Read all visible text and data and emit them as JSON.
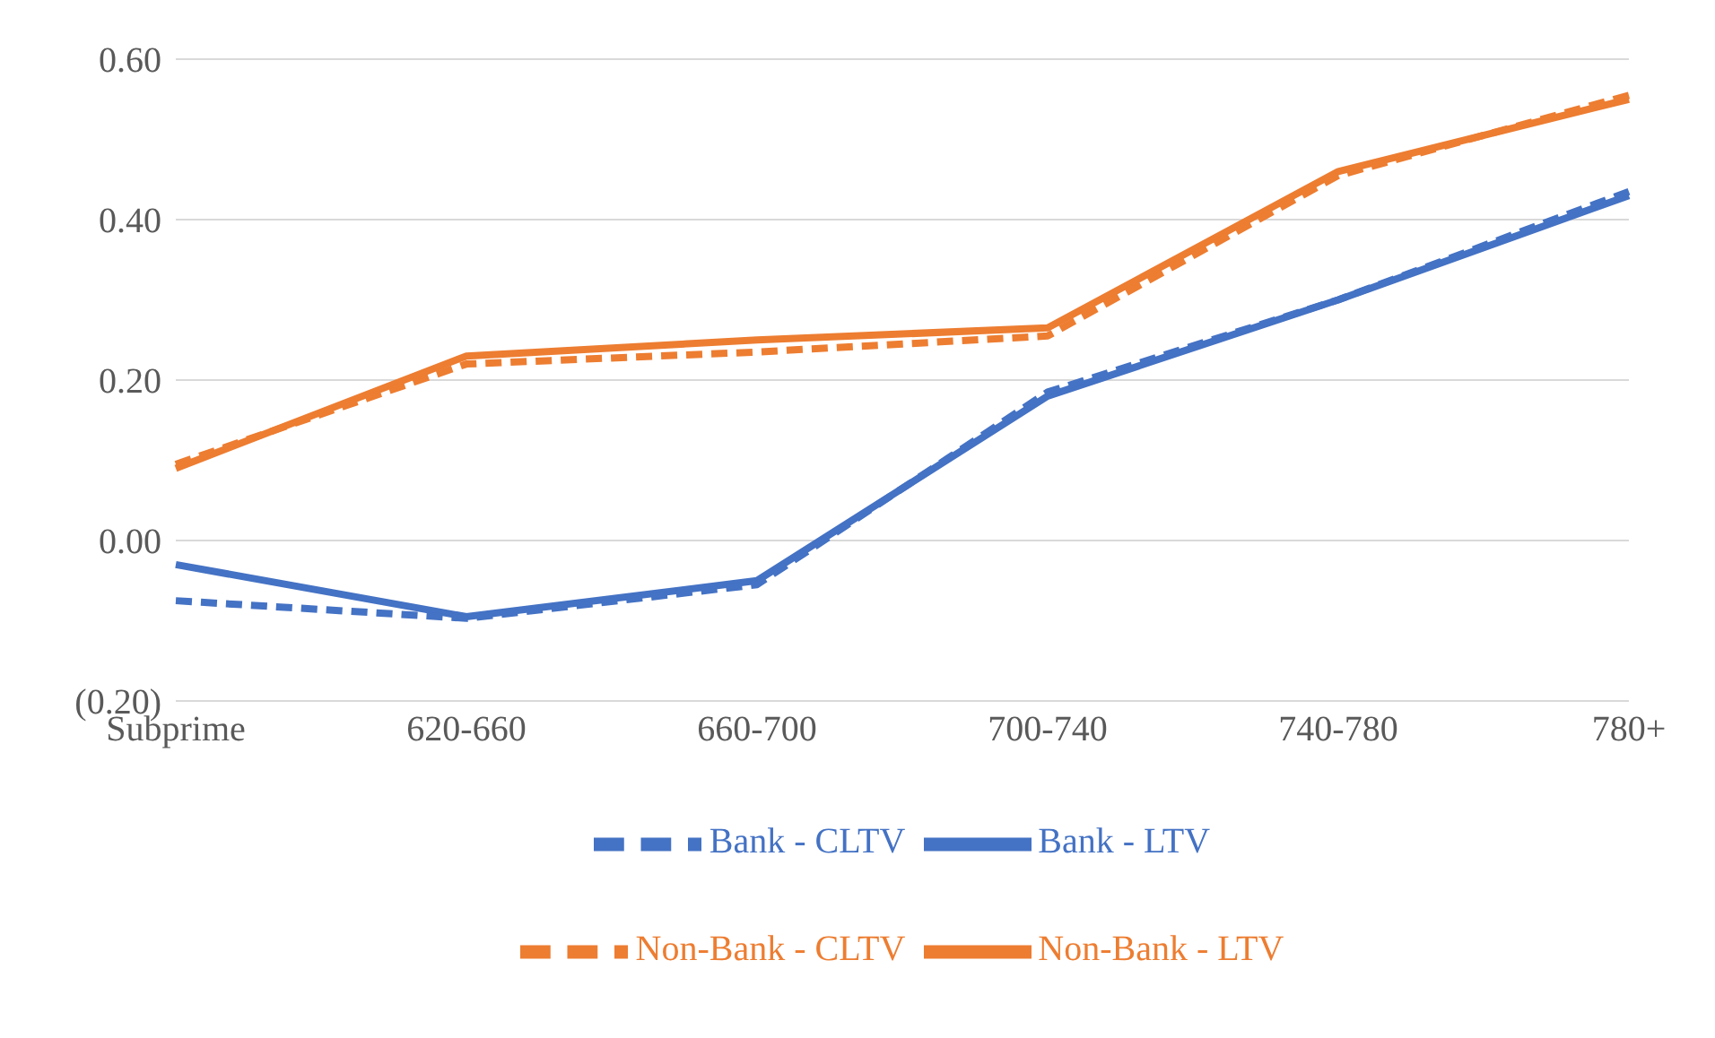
{
  "chart_data": {
    "type": "line",
    "categories": [
      "Subprime",
      "620-660",
      "660-700",
      "700-740",
      "740-780",
      "780+"
    ],
    "series": [
      {
        "name": "Bank - LTV",
        "color": "#4472c4",
        "line_style": "solid",
        "values": [
          -0.03,
          -0.095,
          -0.05,
          0.18,
          0.3,
          0.43
        ]
      },
      {
        "name": "Non-Bank - LTV",
        "color": "#ed7d31",
        "line_style": "solid",
        "values": [
          0.09,
          0.23,
          0.25,
          0.265,
          0.46,
          0.55
        ]
      },
      {
        "name": "Bank - CLTV",
        "color": "#4472c4",
        "line_style": "dashed",
        "values": [
          -0.075,
          -0.097,
          -0.055,
          0.185,
          0.3,
          0.435
        ]
      },
      {
        "name": "Non-Bank - CLTV",
        "color": "#ed7d31",
        "line_style": "dashed",
        "values": [
          0.095,
          0.22,
          0.235,
          0.255,
          0.455,
          0.555
        ]
      }
    ],
    "ylim": [
      -0.2,
      0.6
    ],
    "yticks": [
      {
        "value": -0.2,
        "label": "(0.20)"
      },
      {
        "value": 0,
        "label": "0.00"
      },
      {
        "value": 0.2,
        "label": "0.20"
      },
      {
        "value": 0.4,
        "label": "0.40"
      },
      {
        "value": 0.6,
        "label": "0.60"
      }
    ],
    "grid": "y",
    "legend": "bottom",
    "marker": "none"
  }
}
